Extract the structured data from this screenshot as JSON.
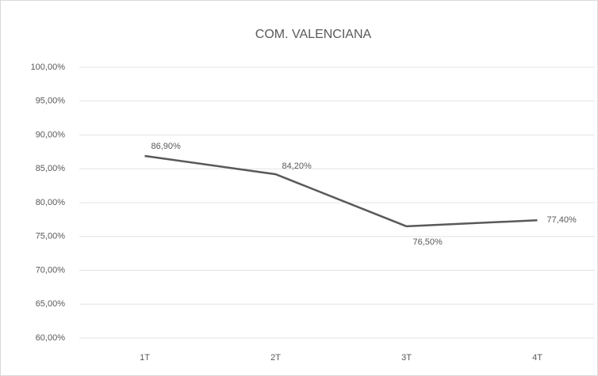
{
  "chart_data": {
    "type": "line",
    "title": "COM. VALENCIANA",
    "categories": [
      "1T",
      "2T",
      "3T",
      "4T"
    ],
    "series": [
      {
        "name": "COM. VALENCIANA",
        "color": "#595959",
        "values": [
          86.9,
          84.2,
          76.5,
          77.4
        ],
        "value_labels": [
          "86,90%",
          "84,20%",
          "76,50%",
          "77,40%"
        ]
      }
    ],
    "ylim": [
      60,
      100
    ],
    "yticks": [
      {
        "value": 60,
        "label": "60,00%"
      },
      {
        "value": 65,
        "label": "65,00%"
      },
      {
        "value": 70,
        "label": "70,00%"
      },
      {
        "value": 75,
        "label": "75,00%"
      },
      {
        "value": 80,
        "label": "80,00%"
      },
      {
        "value": 85,
        "label": "85,00%"
      },
      {
        "value": 90,
        "label": "90,00%"
      },
      {
        "value": 95,
        "label": "95,00%"
      },
      {
        "value": 100,
        "label": "100,00%"
      }
    ],
    "grid": true
  }
}
